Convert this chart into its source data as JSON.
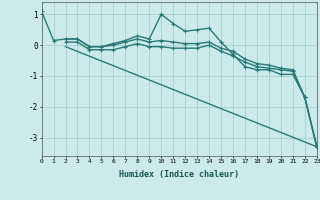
{
  "xlabel": "Humidex (Indice chaleur)",
  "background_color": "#cceaea",
  "grid_color": "#aacfcf",
  "line_color": "#2a7a7a",
  "xlim": [
    0,
    23
  ],
  "ylim": [
    -3.6,
    1.4
  ],
  "yticks": [
    -3,
    -2,
    -1,
    0,
    1
  ],
  "xticks": [
    0,
    1,
    2,
    3,
    4,
    5,
    6,
    7,
    8,
    9,
    10,
    11,
    12,
    13,
    14,
    15,
    16,
    17,
    18,
    19,
    20,
    21,
    22,
    23
  ],
  "series": [
    {
      "x": [
        0,
        1,
        2,
        3,
        4,
        5,
        6,
        7,
        8,
        9,
        10,
        11,
        12,
        13,
        14,
        15,
        16,
        17,
        18,
        19,
        20,
        21,
        22,
        23
      ],
      "y": [
        1.1,
        0.15,
        0.2,
        0.2,
        -0.05,
        -0.05,
        0.05,
        0.15,
        0.3,
        0.2,
        1.0,
        0.7,
        0.45,
        0.5,
        0.55,
        0.1,
        -0.3,
        -0.7,
        -0.8,
        -0.8,
        -0.95,
        -0.95,
        -1.7,
        -3.3
      ],
      "marker": "+",
      "lw": 1.0
    },
    {
      "x": [
        2,
        3,
        4,
        5,
        6,
        7,
        8,
        9,
        10,
        11,
        12,
        13,
        14,
        15,
        16,
        17,
        18,
        19,
        20,
        21,
        22,
        23
      ],
      "y": [
        0.2,
        0.2,
        -0.05,
        -0.05,
        0.0,
        0.1,
        0.2,
        0.1,
        0.15,
        0.1,
        0.05,
        0.05,
        0.1,
        -0.1,
        -0.2,
        -0.45,
        -0.6,
        -0.65,
        -0.75,
        -0.8,
        -1.7,
        -3.3
      ],
      "marker": "+",
      "lw": 1.0
    },
    {
      "x": [
        2,
        3,
        4,
        5,
        6,
        7,
        8,
        9,
        10,
        11,
        12,
        13,
        14,
        15,
        16,
        17,
        18,
        19,
        20,
        21,
        22,
        23
      ],
      "y": [
        0.1,
        0.1,
        -0.15,
        -0.15,
        -0.15,
        -0.05,
        0.05,
        -0.05,
        -0.05,
        -0.1,
        -0.1,
        -0.1,
        -0.0,
        -0.2,
        -0.35,
        -0.55,
        -0.7,
        -0.75,
        -0.8,
        -0.85,
        -1.7,
        -3.3
      ],
      "marker": "+",
      "lw": 1.0
    },
    {
      "x": [
        2,
        23
      ],
      "y": [
        -0.05,
        -3.3
      ],
      "marker": null,
      "lw": 1.0
    }
  ]
}
